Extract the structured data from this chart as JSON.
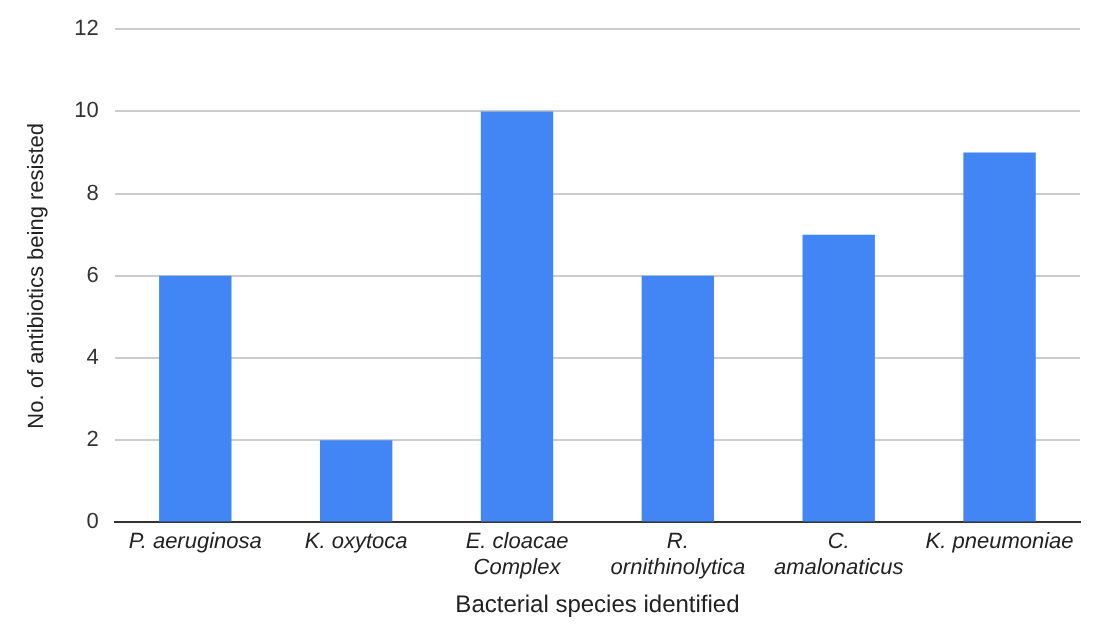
{
  "chart_data": {
    "type": "bar",
    "xlabel": "Bacterial species identified",
    "ylabel": "No. of antibiotics being resisted",
    "categories": [
      "P. aeruginosa",
      "K. oxytoca",
      "E. cloacae\nComplex",
      "R.\nornithinolytica",
      "C.\namalonaticus",
      "K. pneumoniae"
    ],
    "values": [
      6,
      2,
      10,
      6,
      7,
      9
    ],
    "color": "#4285f4",
    "ylim": [
      0,
      12
    ],
    "yticks": [
      0,
      2,
      4,
      6,
      8,
      10,
      12
    ],
    "grid": "y"
  }
}
